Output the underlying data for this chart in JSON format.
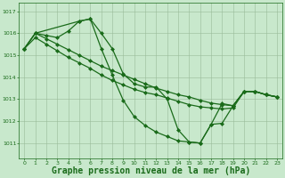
{
  "background_color": "#c8e8cc",
  "grid_color": "#99bb99",
  "line_color": "#1a6b1a",
  "marker_color": "#1a6b1a",
  "title": "Graphe pression niveau de la mer (hPa)",
  "title_fontsize": 7.0,
  "title_color": "#1a6b1a",
  "xlim": [
    -0.5,
    23.5
  ],
  "ylim": [
    1010.3,
    1017.4
  ],
  "yticks": [
    1011,
    1012,
    1013,
    1014,
    1015,
    1016,
    1017
  ],
  "xticks": [
    0,
    1,
    2,
    3,
    4,
    5,
    6,
    7,
    8,
    9,
    10,
    11,
    12,
    13,
    14,
    15,
    16,
    17,
    18,
    19,
    20,
    21,
    22,
    23
  ],
  "series": [
    {
      "x": [
        0,
        1,
        2,
        3,
        4,
        5,
        6,
        7,
        8,
        9,
        10,
        11,
        12,
        13,
        14,
        15,
        16,
        17,
        18,
        19,
        20,
        21,
        22,
        23
      ],
      "y": [
        1015.3,
        1016.0,
        1015.9,
        1015.8,
        1016.1,
        1016.55,
        1016.65,
        1016.0,
        1015.3,
        1014.15,
        1013.7,
        1013.55,
        1013.55,
        1013.0,
        1011.6,
        1011.05,
        1011.0,
        1011.85,
        1012.8,
        1012.7,
        1013.35,
        1013.35,
        1013.2,
        1013.1
      ],
      "marker": "D",
      "markersize": 2.0,
      "linewidth": 0.9
    },
    {
      "x": [
        0,
        1,
        5,
        6,
        7,
        8,
        9,
        10,
        11,
        12,
        13,
        14,
        15,
        16,
        17,
        18,
        19,
        20,
        21,
        22,
        23
      ],
      "y": [
        1015.3,
        1016.0,
        1016.55,
        1016.65,
        1015.3,
        1014.1,
        1012.95,
        1012.2,
        1011.8,
        1011.5,
        1011.3,
        1011.1,
        1011.05,
        1011.0,
        1011.85,
        1011.9,
        1012.7,
        1013.35,
        1013.35,
        1013.2,
        1013.1
      ],
      "marker": "D",
      "markersize": 2.0,
      "linewidth": 0.9
    },
    {
      "x": [
        0,
        1,
        2,
        3,
        4,
        5,
        6,
        7,
        8,
        9,
        10,
        11,
        12,
        13,
        14,
        15,
        16,
        17,
        18,
        19,
        20,
        21,
        22,
        23
      ],
      "y": [
        1015.3,
        1016.0,
        1015.75,
        1015.5,
        1015.25,
        1015.0,
        1014.75,
        1014.5,
        1014.3,
        1014.1,
        1013.9,
        1013.7,
        1013.5,
        1013.35,
        1013.2,
        1013.1,
        1012.95,
        1012.82,
        1012.75,
        1012.7,
        1013.35,
        1013.35,
        1013.2,
        1013.1
      ],
      "marker": "D",
      "markersize": 2.0,
      "linewidth": 0.9
    },
    {
      "x": [
        0,
        1,
        2,
        3,
        4,
        5,
        6,
        7,
        8,
        9,
        10,
        11,
        12,
        13,
        14,
        15,
        16,
        17,
        18,
        19,
        20,
        21,
        22,
        23
      ],
      "y": [
        1015.3,
        1015.8,
        1015.5,
        1015.2,
        1014.9,
        1014.65,
        1014.4,
        1014.1,
        1013.85,
        1013.65,
        1013.45,
        1013.3,
        1013.2,
        1013.05,
        1012.9,
        1012.75,
        1012.65,
        1012.6,
        1012.55,
        1012.6,
        1013.35,
        1013.35,
        1013.2,
        1013.1
      ],
      "marker": "D",
      "markersize": 2.0,
      "linewidth": 0.9
    }
  ]
}
